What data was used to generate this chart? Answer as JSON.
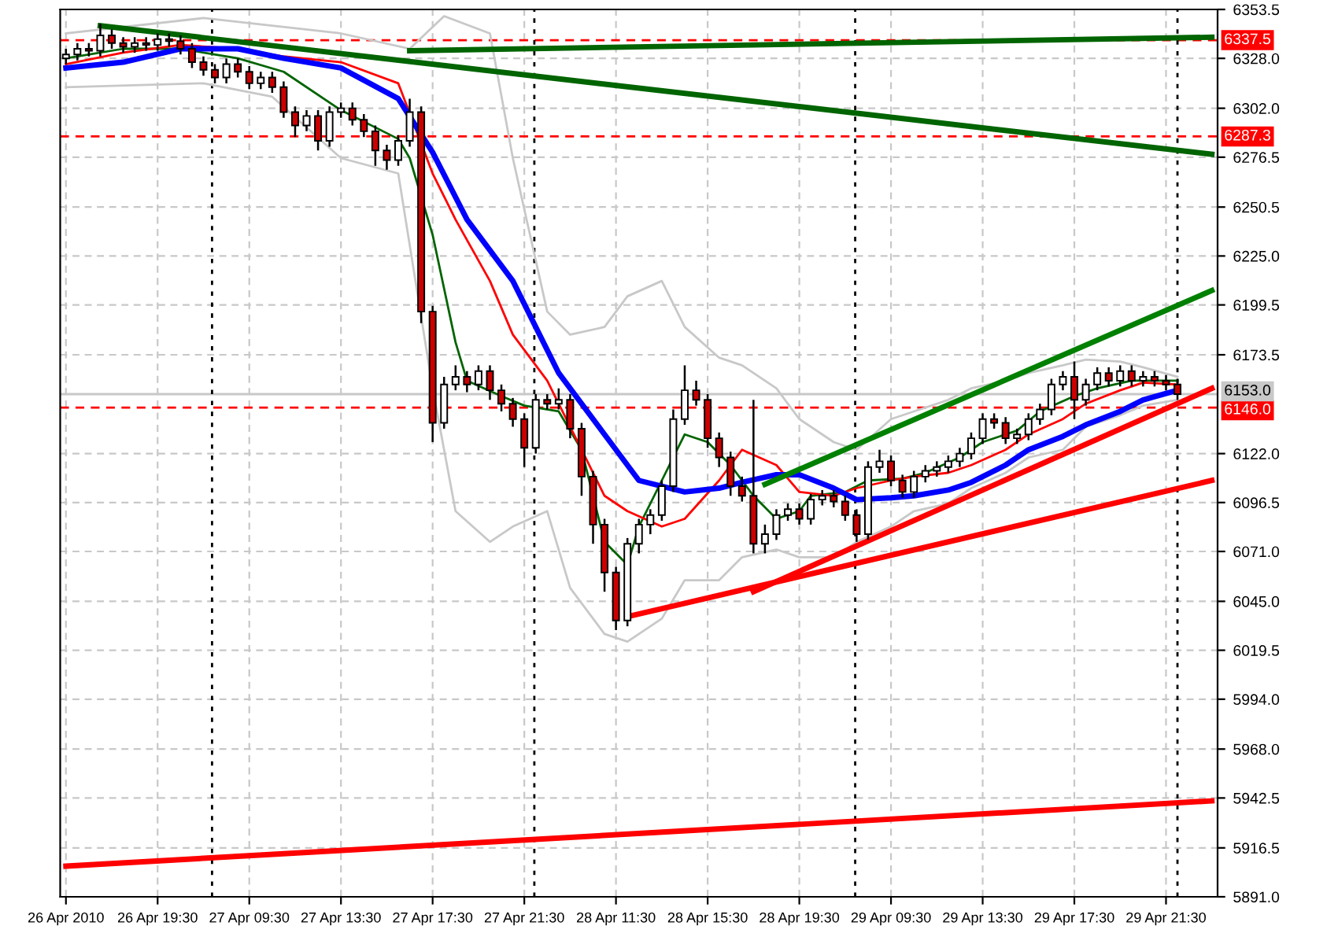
{
  "chart_data": {
    "type": "candlestick",
    "categories": [
      "26 Apr 2010",
      null,
      null,
      null,
      null,
      null,
      null,
      null,
      "26 Apr 19:30",
      null,
      null,
      null,
      null,
      null,
      null,
      null,
      "27 Apr 09:30",
      null,
      null,
      null,
      null,
      null,
      null,
      null,
      "27 Apr 13:30",
      null,
      null,
      null,
      null,
      null,
      null,
      null,
      "27 Apr 17:30",
      null,
      null,
      null,
      null,
      null,
      null,
      null,
      "27 Apr 21:30",
      null,
      null,
      null,
      null,
      null,
      null,
      null,
      "28 Apr 11:30",
      null,
      null,
      null,
      null,
      null,
      null,
      null,
      "28 Apr 15:30",
      null,
      null,
      null,
      null,
      null,
      null,
      null,
      "28 Apr 19:30",
      null,
      null,
      null,
      null,
      null,
      null,
      null,
      "29 Apr 09:30",
      null,
      null,
      null,
      null,
      null,
      null,
      null,
      "29 Apr 13:30",
      null,
      null,
      null,
      null,
      null,
      null,
      null,
      "29 Apr 17:30",
      null,
      null,
      null,
      null,
      null,
      null,
      null,
      "29 Apr 21:30",
      null,
      null,
      null,
      null
    ],
    "ohlc": [
      [
        6328,
        6333,
        6325,
        6330
      ],
      [
        6330,
        6336,
        6327,
        6333
      ],
      [
        6333,
        6336,
        6329,
        6332
      ],
      [
        6332,
        6346,
        6329,
        6340
      ],
      [
        6340,
        6343,
        6333,
        6336
      ],
      [
        6336,
        6339,
        6331,
        6334
      ],
      [
        6334,
        6339,
        6331,
        6336
      ],
      [
        6336,
        6339,
        6332,
        6335
      ],
      [
        6335,
        6341,
        6332,
        6338
      ],
      [
        6338,
        6341,
        6334,
        6337
      ],
      [
        6337,
        6340,
        6330,
        6333
      ],
      [
        6333,
        6336,
        6323,
        6326
      ],
      [
        6326,
        6329,
        6319,
        6322
      ],
      [
        6322,
        6325,
        6315,
        6318
      ],
      [
        6318,
        6328,
        6315,
        6325
      ],
      [
        6325,
        6328,
        6318,
        6321
      ],
      [
        6321,
        6324,
        6312,
        6315
      ],
      [
        6315,
        6321,
        6312,
        6318
      ],
      [
        6318,
        6321,
        6310,
        6313
      ],
      [
        6313,
        6316,
        6297,
        6300
      ],
      [
        6300,
        6303,
        6287,
        6293
      ],
      [
        6293,
        6301,
        6290,
        6298
      ],
      [
        6298,
        6301,
        6280,
        6285
      ],
      [
        6285,
        6303,
        6282,
        6300
      ],
      [
        6300,
        6305,
        6297,
        6302
      ],
      [
        6302,
        6305,
        6293,
        6296
      ],
      [
        6296,
        6299,
        6287,
        6290
      ],
      [
        6290,
        6293,
        6272,
        6280
      ],
      [
        6280,
        6283,
        6270,
        6275
      ],
      [
        6275,
        6288,
        6272,
        6285
      ],
      [
        6285,
        6307,
        6282,
        6300
      ],
      [
        6300,
        6303,
        6190,
        6196
      ],
      [
        6196,
        6199,
        6128,
        6138
      ],
      [
        6138,
        6162,
        6135,
        6158
      ],
      [
        6158,
        6168,
        6155,
        6162
      ],
      [
        6162,
        6165,
        6154,
        6158
      ],
      [
        6158,
        6168,
        6155,
        6165
      ],
      [
        6165,
        6168,
        6150,
        6155
      ],
      [
        6155,
        6158,
        6144,
        6148
      ],
      [
        6148,
        6151,
        6136,
        6140
      ],
      [
        6140,
        6143,
        6115,
        6125
      ],
      [
        6125,
        6153,
        6122,
        6150
      ],
      [
        6150,
        6153,
        6145,
        6148
      ],
      [
        6148,
        6156,
        6145,
        6150
      ],
      [
        6150,
        6153,
        6130,
        6135
      ],
      [
        6135,
        6138,
        6100,
        6110
      ],
      [
        6110,
        6113,
        6075,
        6085
      ],
      [
        6085,
        6088,
        6050,
        6060
      ],
      [
        6060,
        6063,
        6030,
        6035
      ],
      [
        6035,
        6078,
        6032,
        6075
      ],
      [
        6075,
        6088,
        6070,
        6085
      ],
      [
        6085,
        6093,
        6080,
        6090
      ],
      [
        6090,
        6108,
        6087,
        6105
      ],
      [
        6105,
        6145,
        6102,
        6140
      ],
      [
        6140,
        6168,
        6137,
        6155
      ],
      [
        6155,
        6160,
        6147,
        6150
      ],
      [
        6150,
        6153,
        6125,
        6130
      ],
      [
        6130,
        6133,
        6115,
        6120
      ],
      [
        6120,
        6123,
        6100,
        6105
      ],
      [
        6105,
        6110,
        6097,
        6100
      ],
      [
        6100,
        6150,
        6070,
        6075
      ],
      [
        6075,
        6085,
        6070,
        6080
      ],
      [
        6080,
        6093,
        6077,
        6090
      ],
      [
        6090,
        6096,
        6087,
        6093
      ],
      [
        6093,
        6096,
        6085,
        6088
      ],
      [
        6088,
        6101,
        6085,
        6098
      ],
      [
        6098,
        6103,
        6095,
        6100
      ],
      [
        6100,
        6103,
        6094,
        6097
      ],
      [
        6097,
        6100,
        6087,
        6090
      ],
      [
        6090,
        6093,
        6076,
        6080
      ],
      [
        6080,
        6118,
        6077,
        6115
      ],
      [
        6115,
        6124,
        6112,
        6118
      ],
      [
        6118,
        6121,
        6105,
        6108
      ],
      [
        6108,
        6111,
        6099,
        6102
      ],
      [
        6102,
        6113,
        6099,
        6110
      ],
      [
        6110,
        6116,
        6107,
        6113
      ],
      [
        6113,
        6118,
        6110,
        6115
      ],
      [
        6115,
        6121,
        6112,
        6118
      ],
      [
        6118,
        6125,
        6115,
        6122
      ],
      [
        6122,
        6133,
        6119,
        6130
      ],
      [
        6130,
        6143,
        6127,
        6140
      ],
      [
        6140,
        6143,
        6135,
        6138
      ],
      [
        6138,
        6141,
        6127,
        6130
      ],
      [
        6130,
        6135,
        6127,
        6132
      ],
      [
        6132,
        6143,
        6129,
        6140
      ],
      [
        6140,
        6148,
        6137,
        6145
      ],
      [
        6145,
        6161,
        6142,
        6158
      ],
      [
        6158,
        6165,
        6155,
        6162
      ],
      [
        6162,
        6170,
        6140,
        6150
      ],
      [
        6150,
        6161,
        6147,
        6158
      ],
      [
        6158,
        6167,
        6155,
        6164
      ],
      [
        6164,
        6167,
        6157,
        6160
      ],
      [
        6160,
        6168,
        6157,
        6165
      ],
      [
        6165,
        6168,
        6157,
        6160
      ],
      [
        6160,
        6165,
        6157,
        6162
      ],
      [
        6162,
        6165,
        6157,
        6160
      ],
      [
        6160,
        6163,
        6155,
        6158
      ],
      [
        6158,
        6161,
        6150,
        6153
      ],
      null,
      null,
      null
    ],
    "colors": [
      "#ffffff",
      "#ffffff",
      "#cc0000",
      "#ffffff",
      "#cc0000",
      "#cc0000",
      "#ffffff",
      "#cc0000",
      "#ffffff",
      "#cc0000",
      "#cc0000",
      "#cc0000",
      "#cc0000",
      "#cc0000",
      "#ffffff",
      "#cc0000",
      "#cc0000",
      "#ffffff",
      "#cc0000",
      "#cc0000",
      "#cc0000",
      "#ffffff",
      "#cc0000",
      "#ffffff",
      "#ffffff",
      "#cc0000",
      "#cc0000",
      "#cc0000",
      "#cc0000",
      "#ffffff",
      "#ffffff",
      "#cc0000",
      "#cc0000",
      "#ffffff",
      "#ffffff",
      "#cc0000",
      "#ffffff",
      "#cc0000",
      "#cc0000",
      "#cc0000",
      "#cc0000",
      "#ffffff",
      "#cc0000",
      "#ffffff",
      "#cc0000",
      "#cc0000",
      "#cc0000",
      "#cc0000",
      "#cc0000",
      "#ffffff",
      "#ffffff",
      "#ffffff",
      "#ffffff",
      "#ffffff",
      "#ffffff",
      "#cc0000",
      "#cc0000",
      "#cc0000",
      "#cc0000",
      "#cc0000",
      "#cc0000",
      "#ffffff",
      "#ffffff",
      "#ffffff",
      "#cc0000",
      "#ffffff",
      "#ffffff",
      "#cc0000",
      "#cc0000",
      "#cc0000",
      "#ffffff",
      "#ffffff",
      "#cc0000",
      "#cc0000",
      "#ffffff",
      "#ffffff",
      "#ffffff",
      "#ffffff",
      "#ffffff",
      "#ffffff",
      "#ffffff",
      "#cc0000",
      "#cc0000",
      "#ffffff",
      "#ffffff",
      "#ffffff",
      "#ffffff",
      "#ffffff",
      "#cc0000",
      "#ffffff",
      "#ffffff",
      "#cc0000",
      "#ffffff",
      "#cc0000",
      "#ffffff",
      "#cc0000",
      "#cc0000",
      "#cc0000",
      null,
      null,
      null
    ],
    "series": [
      {
        "type": "line",
        "color": "#c8c8c8",
        "values": [
          6341,
          null,
          null,
          null,
          null,
          null,
          null,
          null,
          null,
          null,
          null,
          null,
          6349,
          null,
          null,
          null,
          null,
          null,
          null,
          null,
          null,
          null,
          null,
          null,
          6341,
          null,
          null,
          null,
          null,
          null,
          6333,
          null,
          null,
          6350,
          null,
          null,
          null,
          6341,
          null,
          6276,
          null,
          null,
          6196,
          null,
          6184,
          null,
          null,
          6188,
          null,
          6204,
          null,
          null,
          6212,
          null,
          6188,
          null,
          null,
          6172,
          null,
          6168,
          null,
          null,
          6156,
          null,
          6140,
          null,
          null,
          6128,
          null,
          6124,
          null,
          null,
          6140,
          null,
          6144,
          null,
          null,
          6150,
          null,
          6156,
          null,
          null,
          6160,
          null,
          6164,
          null,
          null,
          6168,
          null,
          6171,
          null,
          null,
          6170,
          null,
          6167,
          null,
          null,
          6162,
          null,
          null,
          null
        ]
      },
      {
        "type": "line",
        "color": "#c8c8c8",
        "values": [
          6313,
          null,
          null,
          null,
          null,
          null,
          null,
          null,
          null,
          null,
          null,
          null,
          6315,
          null,
          null,
          null,
          null,
          null,
          6308,
          null,
          null,
          null,
          null,
          null,
          6276,
          null,
          null,
          null,
          null,
          6268,
          null,
          null,
          6156,
          null,
          6092,
          null,
          null,
          6076,
          null,
          6084,
          null,
          null,
          6092,
          null,
          6052,
          null,
          null,
          6028,
          null,
          6024,
          null,
          null,
          6036,
          null,
          6056,
          null,
          null,
          6056,
          null,
          6068,
          null,
          null,
          6072,
          null,
          6068,
          null,
          null,
          6068,
          null,
          6076,
          null,
          null,
          6084,
          null,
          6092,
          null,
          null,
          6096,
          null,
          6104,
          null,
          null,
          6112,
          null,
          6120,
          null,
          null,
          6124,
          null,
          6136,
          null,
          null,
          6142,
          null,
          6147,
          null,
          null,
          6150,
          null,
          null,
          null
        ]
      },
      {
        "type": "line",
        "color": "#006400",
        "values": [
          6328,
          null,
          null,
          null,
          null,
          6333,
          null,
          null,
          null,
          null,
          6333,
          null,
          null,
          null,
          null,
          6328,
          null,
          null,
          null,
          6321,
          null,
          null,
          null,
          null,
          6301,
          null,
          null,
          null,
          null,
          6286,
          6276,
          null,
          6236,
          null,
          6180,
          6160,
          null,
          null,
          6152,
          null,
          6147,
          null,
          null,
          6144,
          null,
          6124,
          null,
          6076,
          null,
          6064,
          6084,
          null,
          6108,
          null,
          6132,
          null,
          6128,
          null,
          6116,
          null,
          6100,
          null,
          6088,
          null,
          6092,
          6100,
          null,
          null,
          6102,
          null,
          6108,
          null,
          null,
          6109,
          null,
          6112,
          null,
          null,
          6120,
          null,
          6128,
          null,
          null,
          6134,
          null,
          6144,
          null,
          null,
          6152,
          null,
          6156,
          null,
          null,
          6160,
          null,
          null,
          null,
          6160,
          null,
          null,
          null
        ]
      },
      {
        "type": "line",
        "color": "#ff0000",
        "values": [
          6325,
          null,
          null,
          null,
          null,
          6331,
          null,
          null,
          null,
          null,
          6335,
          null,
          null,
          null,
          null,
          6333,
          null,
          null,
          null,
          6329,
          null,
          null,
          null,
          null,
          6326,
          null,
          null,
          null,
          null,
          6315,
          null,
          null,
          6268,
          null,
          6244,
          null,
          null,
          6212,
          null,
          6184,
          null,
          null,
          6160,
          null,
          6136,
          null,
          null,
          6100,
          null,
          6092,
          null,
          null,
          6084,
          null,
          6088,
          null,
          null,
          6108,
          null,
          6124,
          null,
          null,
          6116,
          null,
          6102,
          null,
          null,
          6100,
          null,
          6104,
          null,
          null,
          6108,
          null,
          6110,
          null,
          null,
          6112,
          null,
          6116,
          null,
          null,
          6124,
          null,
          6132,
          null,
          null,
          6140,
          null,
          6148,
          null,
          null,
          6155,
          null,
          6159,
          null,
          null,
          6158,
          null,
          null,
          null
        ]
      },
      {
        "type": "line",
        "color": "#0000ff",
        "values": [
          6323,
          null,
          null,
          null,
          null,
          6326,
          null,
          null,
          null,
          null,
          6333,
          null,
          null,
          null,
          null,
          6333,
          null,
          null,
          null,
          6328,
          null,
          null,
          null,
          null,
          6323,
          null,
          null,
          null,
          null,
          6307,
          null,
          null,
          6279,
          null,
          null,
          6244,
          null,
          null,
          null,
          6212,
          null,
          null,
          null,
          6164,
          null,
          null,
          null,
          6132,
          null,
          null,
          6108,
          null,
          null,
          null,
          6102,
          null,
          null,
          6104,
          null,
          6107,
          null,
          null,
          6111,
          null,
          6111,
          null,
          null,
          6104,
          null,
          6098,
          null,
          null,
          6099,
          null,
          6100,
          null,
          null,
          6103,
          null,
          6107,
          null,
          null,
          6116,
          null,
          6124,
          null,
          null,
          6131,
          null,
          6137,
          null,
          null,
          6144,
          null,
          6150,
          null,
          null,
          6155,
          null,
          null,
          null
        ]
      },
      {
        "type": "line",
        "color": "#006400",
        "values": [
          null,
          null,
          null,
          6345,
          null,
          null,
          null,
          null,
          null,
          null,
          null,
          null,
          null,
          null,
          null,
          null,
          null,
          null,
          null,
          null,
          null,
          null,
          null,
          null,
          null,
          null,
          null,
          null,
          null,
          null,
          null,
          null,
          null,
          null,
          null,
          null,
          null,
          null,
          null,
          null,
          null,
          null,
          null,
          null,
          null,
          null,
          null,
          null,
          null,
          null,
          null,
          null,
          null,
          null,
          null,
          null,
          null,
          null,
          null,
          null,
          null,
          null,
          null,
          null,
          null,
          null,
          null,
          null,
          null,
          null,
          null,
          null,
          null,
          null,
          null,
          null,
          null,
          null,
          null,
          null,
          null,
          null,
          null,
          null,
          null,
          null,
          null,
          null,
          null,
          null,
          null,
          null,
          null,
          null,
          null,
          null,
          null,
          null,
          null,
          null,
          6278
        ]
      },
      {
        "type": "line",
        "color": "#006400",
        "values": [
          null,
          null,
          null,
          null,
          null,
          null,
          null,
          null,
          null,
          null,
          null,
          null,
          null,
          null,
          null,
          null,
          null,
          null,
          null,
          null,
          null,
          null,
          null,
          null,
          null,
          null,
          null,
          null,
          null,
          null,
          6332,
          null,
          null,
          null,
          null,
          null,
          null,
          null,
          null,
          null,
          null,
          null,
          null,
          null,
          null,
          null,
          null,
          null,
          null,
          null,
          null,
          null,
          null,
          null,
          null,
          null,
          null,
          null,
          null,
          null,
          null,
          null,
          null,
          null,
          null,
          null,
          null,
          null,
          null,
          null,
          null,
          null,
          null,
          null,
          null,
          null,
          null,
          null,
          null,
          null,
          null,
          null,
          null,
          null,
          null,
          null,
          null,
          null,
          null,
          null,
          null,
          null,
          null,
          null,
          null,
          null,
          null,
          null,
          null,
          null,
          6339
        ]
      },
      {
        "type": "line",
        "color": "#008000",
        "values": [
          null,
          null,
          null,
          null,
          null,
          null,
          null,
          null,
          null,
          null,
          null,
          null,
          null,
          null,
          null,
          null,
          null,
          null,
          null,
          null,
          null,
          null,
          null,
          null,
          null,
          null,
          null,
          null,
          null,
          null,
          null,
          null,
          null,
          null,
          null,
          null,
          null,
          null,
          null,
          null,
          null,
          null,
          null,
          null,
          null,
          null,
          null,
          null,
          null,
          null,
          null,
          null,
          null,
          null,
          null,
          null,
          null,
          null,
          null,
          null,
          null,
          6106,
          null,
          null,
          null,
          null,
          null,
          null,
          null,
          null,
          null,
          null,
          null,
          null,
          null,
          null,
          null,
          null,
          null,
          null,
          null,
          null,
          null,
          null,
          null,
          null,
          null,
          null,
          null,
          null,
          null,
          null,
          null,
          null,
          null,
          null,
          null,
          null,
          null,
          null,
          6207
        ]
      },
      {
        "type": "line",
        "color": "#ff0000",
        "values": [
          null,
          null,
          null,
          null,
          null,
          null,
          null,
          null,
          null,
          null,
          null,
          null,
          null,
          null,
          null,
          null,
          null,
          null,
          null,
          null,
          null,
          null,
          null,
          null,
          null,
          null,
          null,
          null,
          null,
          null,
          null,
          null,
          null,
          null,
          null,
          null,
          null,
          null,
          null,
          null,
          null,
          null,
          null,
          null,
          null,
          null,
          null,
          null,
          null,
          6037,
          null,
          null,
          null,
          null,
          null,
          null,
          null,
          null,
          null,
          null,
          null,
          null,
          null,
          null,
          null,
          null,
          null,
          null,
          null,
          null,
          null,
          null,
          null,
          null,
          null,
          null,
          null,
          null,
          null,
          null,
          null,
          null,
          null,
          null,
          null,
          null,
          null,
          null,
          null,
          null,
          null,
          null,
          null,
          null,
          null,
          null,
          null,
          null,
          null,
          null,
          6108
        ]
      },
      {
        "type": "line",
        "color": "#ff0000",
        "values": [
          null,
          null,
          null,
          null,
          null,
          null,
          null,
          null,
          null,
          null,
          null,
          null,
          null,
          null,
          null,
          null,
          null,
          null,
          null,
          null,
          null,
          null,
          null,
          null,
          null,
          null,
          null,
          null,
          null,
          null,
          null,
          null,
          null,
          null,
          null,
          null,
          null,
          null,
          null,
          null,
          null,
          null,
          null,
          null,
          null,
          null,
          null,
          null,
          null,
          null,
          null,
          null,
          null,
          null,
          null,
          null,
          null,
          null,
          null,
          null,
          6050,
          null,
          null,
          null,
          null,
          null,
          null,
          null,
          null,
          null,
          null,
          null,
          null,
          null,
          null,
          null,
          null,
          null,
          null,
          null,
          null,
          null,
          null,
          null,
          null,
          null,
          null,
          null,
          null,
          null,
          null,
          null,
          null,
          null,
          null,
          null,
          null,
          null,
          null,
          null,
          6156
        ]
      },
      {
        "type": "line",
        "color": "#ff0000",
        "values": [
          5907,
          null,
          null,
          null,
          null,
          null,
          null,
          null,
          null,
          null,
          null,
          null,
          null,
          null,
          null,
          null,
          null,
          null,
          null,
          null,
          null,
          null,
          null,
          null,
          null,
          null,
          null,
          null,
          null,
          null,
          null,
          null,
          null,
          null,
          null,
          null,
          null,
          null,
          null,
          null,
          null,
          null,
          null,
          null,
          null,
          null,
          null,
          null,
          null,
          null,
          null,
          null,
          null,
          null,
          null,
          null,
          null,
          null,
          null,
          null,
          null,
          null,
          null,
          null,
          null,
          null,
          null,
          null,
          null,
          null,
          null,
          null,
          null,
          null,
          null,
          null,
          null,
          null,
          null,
          null,
          null,
          null,
          null,
          null,
          null,
          null,
          null,
          null,
          null,
          null,
          null,
          null,
          null,
          null,
          null,
          null,
          null,
          null,
          null,
          null,
          5941
        ]
      }
    ],
    "ref_lines": [
      {
        "axis": "y",
        "value": 6337.5,
        "label": "6337.5",
        "color": "#ff0000",
        "line_style": "dashed"
      },
      {
        "axis": "y",
        "value": 6287.3,
        "label": "6287.3",
        "color": "#ff0000",
        "line_style": "dashed"
      },
      {
        "axis": "y",
        "value": 6146.0,
        "label": "6146.0",
        "color": "#ff0000",
        "line_style": "dashed"
      },
      {
        "axis": "y",
        "value": 6153.0,
        "label": "6153.0",
        "color": "#c8c8c8",
        "line_style": "solid"
      }
    ],
    "ylim": [
      5891.0,
      6353.5
    ],
    "yticks": [
      {
        "value": 5891,
        "label": "5891.0"
      },
      {
        "value": 5916.5,
        "label": "5916.5"
      },
      {
        "value": 5942.5,
        "label": "5942.5"
      },
      {
        "value": 5968,
        "label": "5968.0"
      },
      {
        "value": 5994,
        "label": "5994.0"
      },
      {
        "value": 6019.5,
        "label": "6019.5"
      },
      {
        "value": 6045,
        "label": "6045.0"
      },
      {
        "value": 6071,
        "label": "6071.0"
      },
      {
        "value": 6096.5,
        "label": "6096.5"
      },
      {
        "value": 6122,
        "label": "6122.0"
      },
      {
        "value": 6173.5,
        "label": "6173.5"
      },
      {
        "value": 6199.5,
        "label": "6199.5"
      },
      {
        "value": 6225,
        "label": "6225.0"
      },
      {
        "value": 6250.5,
        "label": "6250.5"
      },
      {
        "value": 6276.5,
        "label": "6276.5"
      },
      {
        "value": 6302,
        "label": "6302.0"
      },
      {
        "value": 6328,
        "label": "6328.0"
      },
      {
        "value": 6353.5,
        "label": "6353.5"
      }
    ],
    "grid": true,
    "legend": false
  }
}
